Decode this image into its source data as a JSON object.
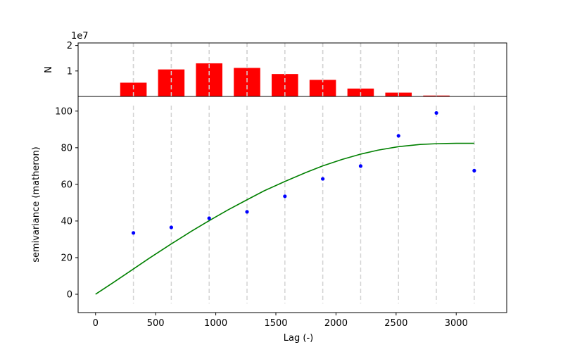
{
  "chart_data": [
    {
      "type": "bar",
      "title": "",
      "xlabel": "",
      "ylabel": "N",
      "y_multiplier": "1e7",
      "xlim": [
        -145,
        3420
      ],
      "ylim": [
        0,
        21000000
      ],
      "yticks": [
        {
          "value": 10000000,
          "label": "1"
        },
        {
          "value": 20000000,
          "label": "2"
        }
      ],
      "bar_width": 220,
      "bar_color": "#ff0000",
      "bin_lines": [
        315,
        630,
        945,
        1260,
        1575,
        1890,
        2205,
        2520,
        2835,
        3150
      ],
      "bin_line_color": "#d3d3d3",
      "bars": [
        {
          "x": 315,
          "value": 5400000
        },
        {
          "x": 630,
          "value": 10600000
        },
        {
          "x": 945,
          "value": 13000000
        },
        {
          "x": 1260,
          "value": 11200000
        },
        {
          "x": 1575,
          "value": 8800000
        },
        {
          "x": 1890,
          "value": 6500000
        },
        {
          "x": 2205,
          "value": 3100000
        },
        {
          "x": 2520,
          "value": 1500000
        },
        {
          "x": 2835,
          "value": 350000
        }
      ]
    },
    {
      "type": "scatter",
      "title": "",
      "xlabel": "Lag (-)",
      "ylabel": "semivariance (matheron)",
      "xlim": [
        -145,
        3420
      ],
      "ylim": [
        -10,
        108
      ],
      "xticks": [
        {
          "value": 0,
          "label": "0"
        },
        {
          "value": 500,
          "label": "500"
        },
        {
          "value": 1000,
          "label": "1000"
        },
        {
          "value": 1500,
          "label": "1500"
        },
        {
          "value": 2000,
          "label": "2000"
        },
        {
          "value": 2500,
          "label": "2500"
        },
        {
          "value": 3000,
          "label": "3000"
        }
      ],
      "yticks": [
        {
          "value": 0,
          "label": "0"
        },
        {
          "value": 20,
          "label": "20"
        },
        {
          "value": 40,
          "label": "40"
        },
        {
          "value": 60,
          "label": "60"
        },
        {
          "value": 80,
          "label": "80"
        },
        {
          "value": 100,
          "label": "100"
        }
      ],
      "bin_lines": [
        315,
        630,
        945,
        1260,
        1575,
        1890,
        2205,
        2520,
        2835,
        3150
      ],
      "bin_line_color": "#d3d3d3",
      "points_color": "#0000ff",
      "model_color": "#008000",
      "points": [
        {
          "x": 315,
          "y": 33.5
        },
        {
          "x": 630,
          "y": 36.5
        },
        {
          "x": 945,
          "y": 41.5
        },
        {
          "x": 1260,
          "y": 45
        },
        {
          "x": 1575,
          "y": 53.5
        },
        {
          "x": 1890,
          "y": 63
        },
        {
          "x": 2205,
          "y": 70
        },
        {
          "x": 2520,
          "y": 86.5
        },
        {
          "x": 2835,
          "y": 99
        },
        {
          "x": 3150,
          "y": 67.5
        }
      ],
      "model_curve": {
        "x": [
          0,
          150,
          315,
          450,
          630,
          800,
          945,
          1100,
          1260,
          1400,
          1575,
          1750,
          1890,
          2050,
          2205,
          2350,
          2520,
          2700,
          2835,
          3000,
          3150
        ],
        "y": [
          0,
          6.5,
          13.8,
          19.8,
          27.5,
          34.5,
          40.2,
          46.0,
          51.6,
          56.4,
          61.6,
          66.5,
          70.1,
          73.6,
          76.5,
          78.7,
          80.6,
          81.8,
          82.2,
          82.4,
          82.4
        ]
      }
    }
  ]
}
